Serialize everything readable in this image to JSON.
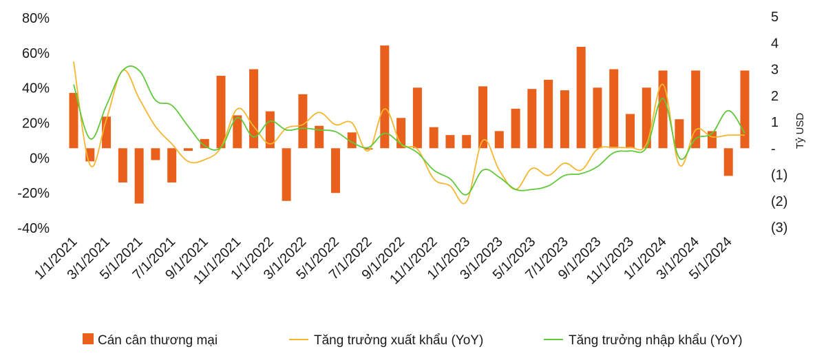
{
  "chart_data": {
    "type": "bar+line",
    "title": "",
    "x": [
      "1/1/2021",
      "2/1/2021",
      "3/1/2021",
      "4/1/2021",
      "5/1/2021",
      "6/1/2021",
      "7/1/2021",
      "8/1/2021",
      "9/1/2021",
      "10/1/2021",
      "11/1/2021",
      "12/1/2021",
      "1/1/2022",
      "2/1/2022",
      "3/1/2022",
      "4/1/2022",
      "5/1/2022",
      "6/1/2022",
      "7/1/2022",
      "8/1/2022",
      "9/1/2022",
      "10/1/2022",
      "11/1/2022",
      "12/1/2022",
      "1/1/2023",
      "2/1/2023",
      "3/1/2023",
      "4/1/2023",
      "5/1/2023",
      "6/1/2023",
      "7/1/2023",
      "8/1/2023",
      "9/1/2023",
      "10/1/2023",
      "11/1/2023",
      "12/1/2023",
      "1/1/2024",
      "2/1/2024",
      "3/1/2024",
      "4/1/2024",
      "5/1/2024",
      "6/1/2024"
    ],
    "x_tick_labels": [
      "1/1/2021",
      "3/1/2021",
      "5/1/2021",
      "7/1/2021",
      "9/1/2021",
      "11/1/2021",
      "1/1/2022",
      "3/1/2022",
      "5/1/2022",
      "7/1/2022",
      "9/1/2022",
      "11/1/2022",
      "1/1/2023",
      "3/1/2023",
      "5/1/2023",
      "7/1/2023",
      "9/1/2023",
      "11/1/2023",
      "1/1/2024",
      "3/1/2024",
      "5/1/2024"
    ],
    "y_left": {
      "label": "",
      "ticks": [
        "80%",
        "60%",
        "40%",
        "20%",
        "0%",
        "-20%",
        "-40%"
      ],
      "min": -0.4,
      "max": 0.8
    },
    "y_right": {
      "label": "Tỷ USD",
      "ticks": [
        "5",
        "4",
        "3",
        "2",
        "1",
        "-",
        "(1)",
        "(2)",
        "(3)"
      ],
      "min": -3,
      "max": 5
    },
    "grid": false,
    "legend_position": "bottom",
    "series": [
      {
        "name": "Cán cân thương mại",
        "type": "bar",
        "axis": "right",
        "color": "#E8601C",
        "values": [
          2.1,
          -0.5,
          1.2,
          -1.3,
          -2.1,
          -0.45,
          -1.3,
          -0.1,
          0.35,
          2.75,
          1.25,
          3.0,
          1.4,
          -2.0,
          2.05,
          0.85,
          -1.7,
          0.6,
          -0.05,
          3.9,
          1.15,
          2.3,
          0.8,
          0.5,
          0.5,
          2.35,
          0.65,
          1.5,
          2.25,
          2.6,
          2.2,
          3.85,
          2.3,
          3.0,
          1.3,
          2.3,
          2.95,
          1.1,
          2.95,
          0.65,
          -1.05,
          2.95
        ]
      },
      {
        "name": "Tăng trưởng xuất khẩu (YoY)",
        "type": "line",
        "axis": "left",
        "color": "#F5B62E",
        "values": [
          0.55,
          -0.04,
          0.22,
          0.5,
          0.34,
          0.18,
          0.08,
          -0.02,
          -0.01,
          0.06,
          0.28,
          0.18,
          0.08,
          0.17,
          0.19,
          0.26,
          0.19,
          0.2,
          0.04,
          0.28,
          0.08,
          0.05,
          -0.12,
          -0.16,
          -0.25,
          0.1,
          -0.07,
          -0.18,
          -0.06,
          -0.1,
          -0.03,
          -0.07,
          0.05,
          0.06,
          0.06,
          0.08,
          0.42,
          -0.04,
          0.16,
          0.12,
          0.13,
          0.13
        ]
      },
      {
        "name": "Tăng trưởng nhập khẩu (YoY)",
        "type": "line",
        "axis": "left",
        "color": "#5FC93A",
        "values": [
          0.42,
          0.11,
          0.3,
          0.5,
          0.5,
          0.33,
          0.3,
          0.18,
          0.07,
          0.06,
          0.23,
          0.12,
          0.21,
          0.16,
          0.17,
          0.16,
          0.15,
          0.09,
          0.06,
          0.14,
          0.08,
          0.03,
          -0.07,
          -0.12,
          -0.21,
          -0.07,
          -0.11,
          -0.18,
          -0.18,
          -0.16,
          -0.1,
          -0.09,
          -0.05,
          0.03,
          0.04,
          0.06,
          0.34,
          0.0,
          0.11,
          0.14,
          0.27,
          0.14
        ]
      }
    ]
  }
}
